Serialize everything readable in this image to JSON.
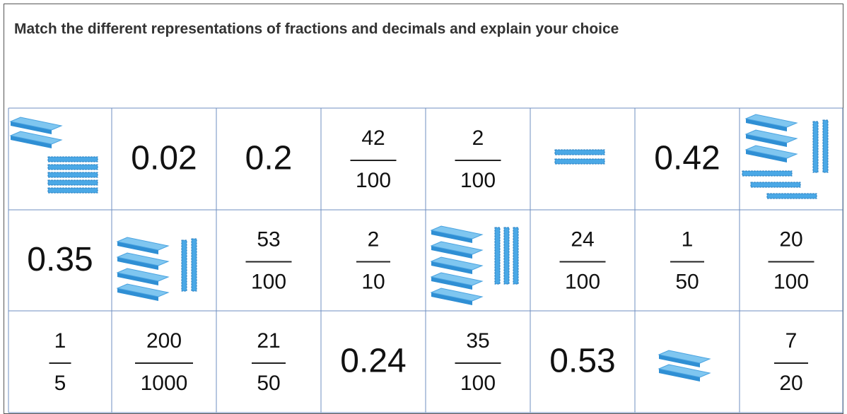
{
  "title": "Match the different representations of fractions and decimals and explain your choice",
  "grid": {
    "rows": [
      [
        null,
        "0.02",
        "0.2",
        {
          "numerator": "42",
          "denominator": "100"
        },
        {
          "numerator": "2",
          "denominator": "100"
        },
        null,
        "0.42",
        null
      ],
      [
        "0.35",
        null,
        {
          "numerator": "53",
          "denominator": "100"
        },
        {
          "numerator": "2",
          "denominator": "10"
        },
        null,
        {
          "numerator": "24",
          "denominator": "100"
        },
        {
          "numerator": "1",
          "denominator": "50"
        },
        {
          "numerator": "20",
          "denominator": "100"
        }
      ],
      [
        {
          "numerator": "1",
          "denominator": "5"
        },
        {
          "numerator": "200",
          "denominator": "1000"
        },
        {
          "numerator": "21",
          "denominator": "50"
        },
        "0.24",
        {
          "numerator": "35",
          "denominator": "100"
        },
        "0.53",
        null,
        {
          "numerator": "7",
          "denominator": "20"
        }
      ]
    ]
  }
}
